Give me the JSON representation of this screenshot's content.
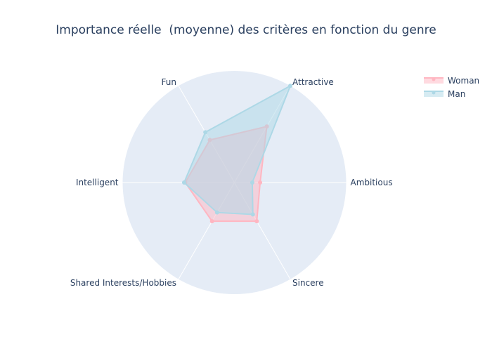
{
  "chart_data": {
    "type": "radar",
    "title": "Importance réelle  (moyenne) des critères en fonction du genre",
    "axes": [
      "Ambitious",
      "Attractive",
      "Fun",
      "Intelligent",
      "Shared Interests/Hobbies",
      "Sincere"
    ],
    "radial_range": [
      0,
      1
    ],
    "grid": true,
    "legend_position": "top-right",
    "series": [
      {
        "name": "Woman",
        "color": "#ffb6c1",
        "values": [
          0.23,
          0.58,
          0.44,
          0.44,
          0.4,
          0.4
        ]
      },
      {
        "name": "Man",
        "color": "#add8e6",
        "values": [
          0.16,
          1.0,
          0.52,
          0.45,
          0.31,
          0.33
        ]
      }
    ]
  }
}
